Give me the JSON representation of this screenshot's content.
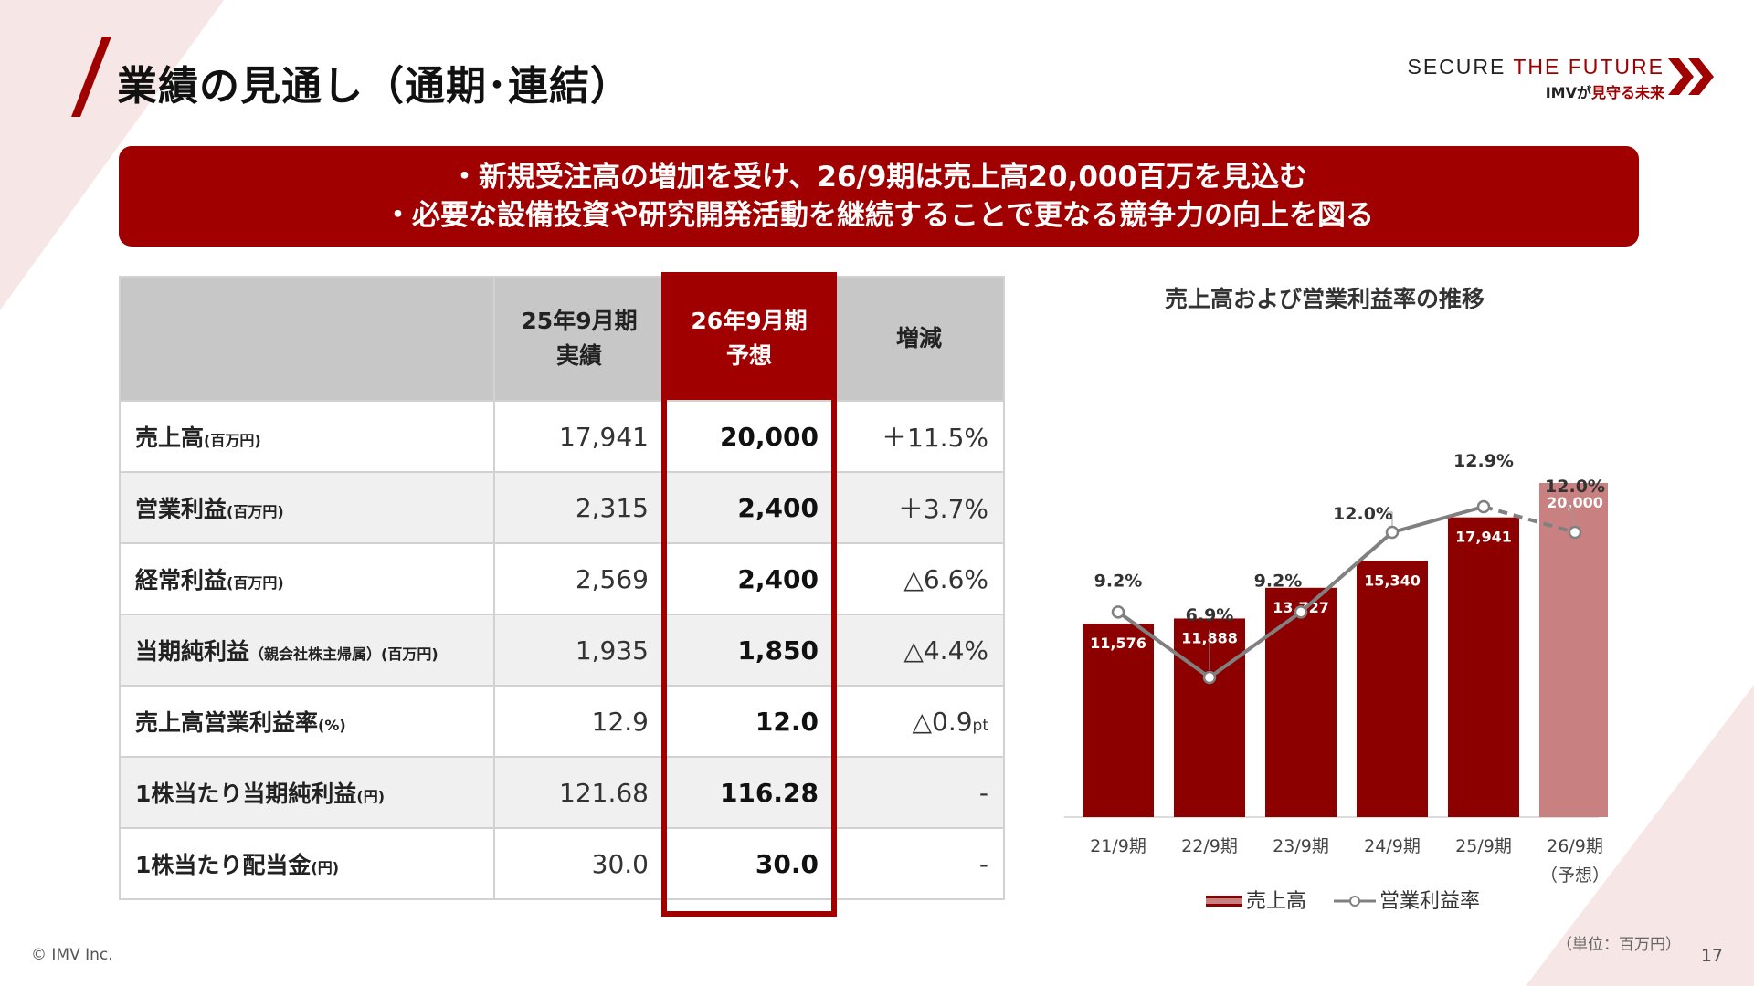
{
  "header": {
    "title": "業績の見通し（通期･連結）"
  },
  "logo": {
    "line1_a": "SECURE ",
    "line1_b": "THE FUTURE",
    "line2_a": "IMVが",
    "line2_b": "見守る未来"
  },
  "banner": {
    "line1": "・新規受注高の増加を受け、26/9期は売上高20,000百万を見込む",
    "line2": "・必要な設備投資や研究開発活動を継続することで更なる競争力の向上を図る"
  },
  "table": {
    "headers": {
      "col1_a": "25年9月期",
      "col1_b": "実績",
      "col2_a": "26年9月期",
      "col2_b": "予想",
      "col3": "増減"
    },
    "rows": [
      {
        "label": "売上高",
        "unit": "(百万円)",
        "prev": "17,941",
        "forecast": "20,000",
        "change": "＋11.5%",
        "change_suffix": ""
      },
      {
        "label": "営業利益",
        "unit": "(百万円)",
        "prev": "2,315",
        "forecast": "2,400",
        "change": "＋3.7%",
        "change_suffix": ""
      },
      {
        "label": "経常利益",
        "unit": "(百万円)",
        "prev": "2,569",
        "forecast": "2,400",
        "change": "△6.6%",
        "change_suffix": ""
      },
      {
        "label": "当期純利益",
        "unit": "（親会社株主帰属）(百万円)",
        "prev": "1,935",
        "forecast": "1,850",
        "change": "△4.4%",
        "change_suffix": ""
      },
      {
        "label": "売上高営業利益率",
        "unit": "(%)",
        "prev": "12.9",
        "forecast": "12.0",
        "change": "△0.9",
        "change_suffix": "pt"
      },
      {
        "label": "1株当たり当期純利益",
        "unit": "(円)",
        "prev": "121.68",
        "forecast": "116.28",
        "change": "-",
        "change_suffix": ""
      },
      {
        "label": "1株当たり配当金",
        "unit": "(円)",
        "prev": "30.0",
        "forecast": "30.0",
        "change": "-",
        "change_suffix": ""
      }
    ]
  },
  "chart_data": {
    "type": "bar",
    "title": "売上高および営業利益率の推移",
    "categories": [
      "21/9期",
      "22/9期",
      "23/9期",
      "24/9期",
      "25/9期",
      "26/9期"
    ],
    "category_notes": [
      "",
      "",
      "",
      "",
      "",
      "（予想）"
    ],
    "series": [
      {
        "name": "売上高",
        "type": "bar",
        "values": [
          11576,
          11888,
          13727,
          15340,
          17941,
          20000
        ],
        "labels": [
          "11,576",
          "11,888",
          "13,727",
          "15,340",
          "17,941",
          "20,000"
        ]
      },
      {
        "name": "営業利益率",
        "type": "line",
        "values": [
          9.2,
          6.9,
          9.2,
          12.0,
          12.9,
          12.0
        ],
        "labels": [
          "9.2%",
          "6.9%",
          "9.2%",
          "12.0%",
          "12.9%",
          "12.0%"
        ]
      }
    ],
    "forecast_index": 5,
    "colors": {
      "bar": "#8c0000",
      "bar_forecast": "#c98080",
      "line": "#808080"
    },
    "legend": "bottom",
    "unit_note": "（単位：百万円）"
  },
  "footer": {
    "copyright": "© IMV Inc.",
    "page": "17"
  }
}
